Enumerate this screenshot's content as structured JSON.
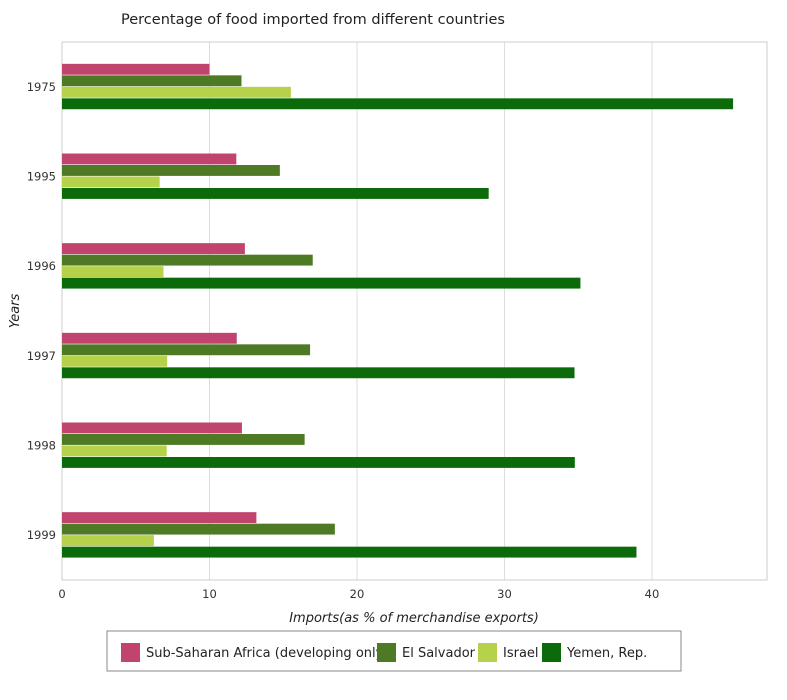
{
  "chart_data": {
    "type": "bar",
    "orientation": "horizontal",
    "title": "Percentage of food imported from different countries",
    "xlabel": "Imports(as % of merchandise exports)",
    "ylabel": "Years",
    "categories": [
      "1975",
      "1995",
      "1996",
      "1997",
      "1998",
      "1999"
    ],
    "xlim": [
      0,
      47.8
    ],
    "xticks": [
      0,
      10,
      20,
      30,
      40
    ],
    "grid": true,
    "legend_position": "bottom",
    "series": [
      {
        "name": "Sub-Saharan Africa (developing only)",
        "color": "#c1446e",
        "values": [
          10.0,
          11.82,
          12.4,
          11.85,
          12.2,
          13.18
        ]
      },
      {
        "name": "El Salvador",
        "color": "#4e7a25",
        "values": [
          12.17,
          14.77,
          17.0,
          16.82,
          16.45,
          18.5
        ]
      },
      {
        "name": "Israel",
        "color": "#b5d24a",
        "values": [
          15.52,
          6.62,
          6.88,
          7.13,
          7.1,
          6.23
        ]
      },
      {
        "name": "Yemen, Rep.",
        "color": "#0b6b0b",
        "values": [
          45.5,
          28.93,
          35.15,
          34.75,
          34.77,
          38.95
        ]
      }
    ]
  }
}
